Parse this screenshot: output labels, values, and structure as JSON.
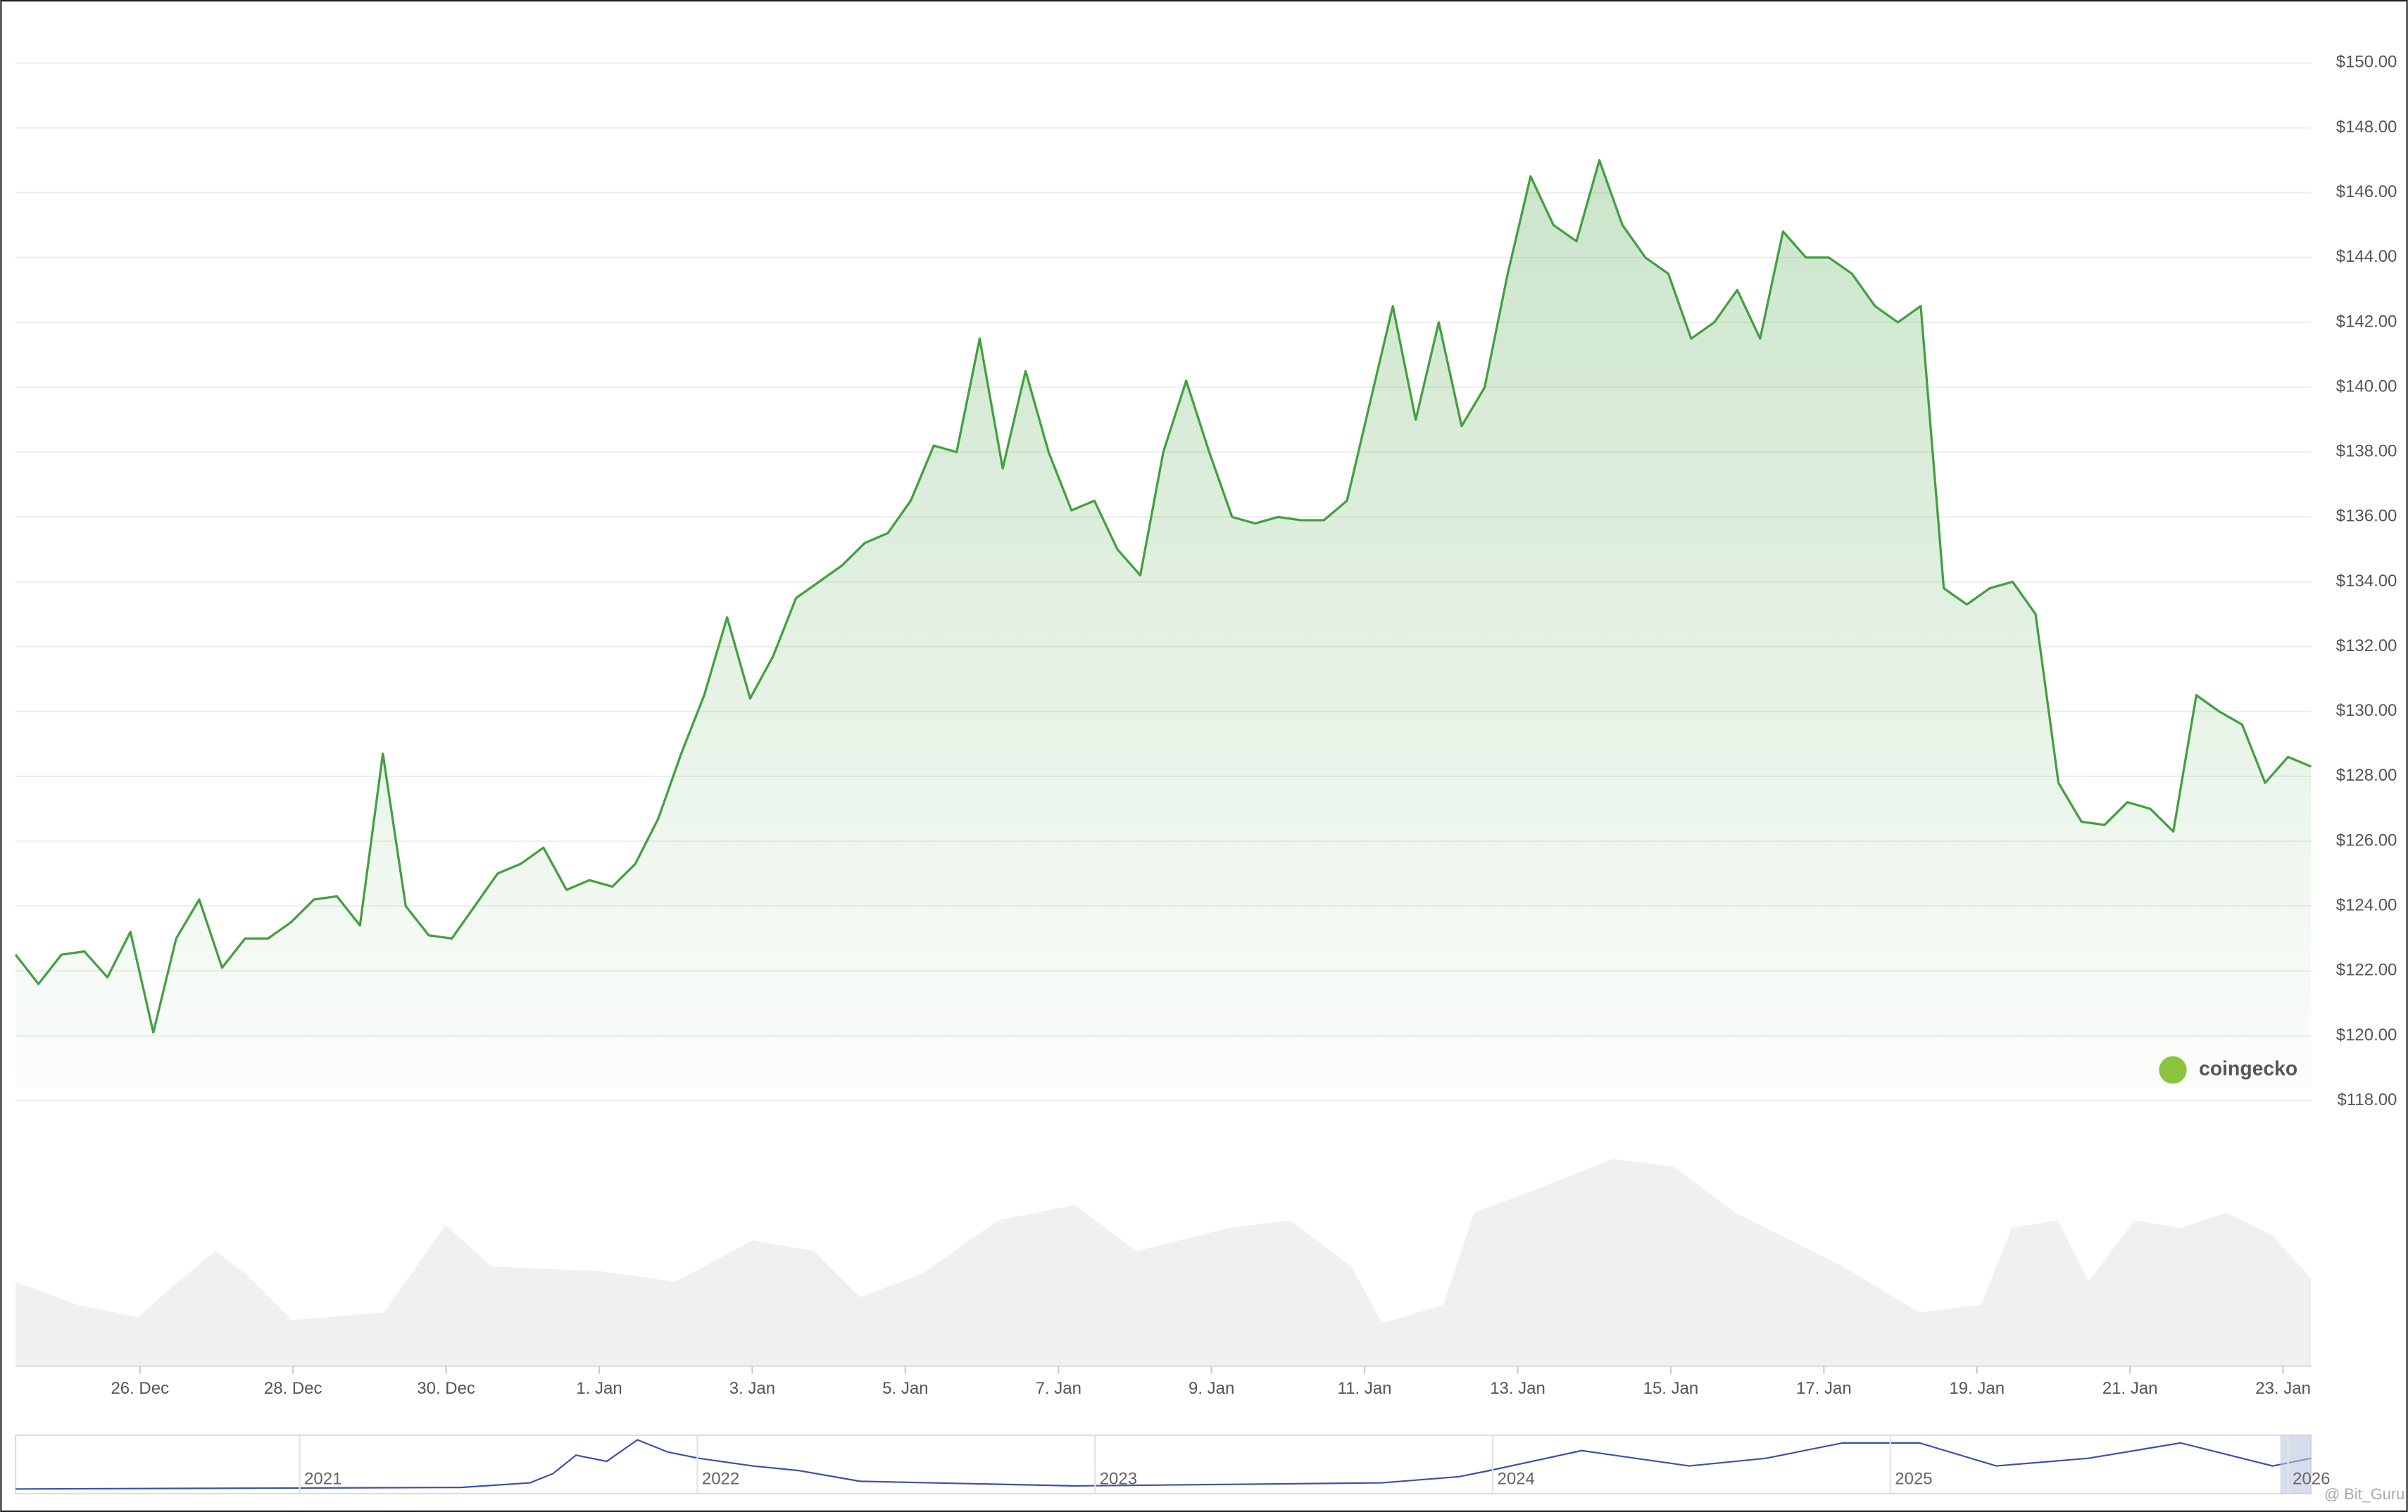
{
  "chart_data": {
    "type": "line",
    "color": "#43a040",
    "fill": true,
    "grid": true,
    "values": [
      122.5,
      121.6,
      122.5,
      122.6,
      121.8,
      123.2,
      120.1,
      123.0,
      124.2,
      122.1,
      123.0,
      123.0,
      123.5,
      124.2,
      124.3,
      123.4,
      128.7,
      124.0,
      123.1,
      123.0,
      124.0,
      125.0,
      125.3,
      125.8,
      124.5,
      124.8,
      124.6,
      125.3,
      126.7,
      128.7,
      130.5,
      132.9,
      130.4,
      131.7,
      133.5,
      134.0,
      134.5,
      135.2,
      135.5,
      136.5,
      138.2,
      138.0,
      141.5,
      137.5,
      140.5,
      138.0,
      136.2,
      136.5,
      135.0,
      134.2,
      138.0,
      140.2,
      138.0,
      136.0,
      135.8,
      136.0,
      135.9,
      135.9,
      136.5,
      139.5,
      142.5,
      139.0,
      142.0,
      138.8,
      140.0,
      143.5,
      146.5,
      145.0,
      144.5,
      147.0,
      145.0,
      144.0,
      143.5,
      141.5,
      142.0,
      143.0,
      141.5,
      144.8,
      144.0,
      144.0,
      143.5,
      142.5,
      142.0,
      142.5,
      133.8,
      133.3,
      133.8,
      134.0,
      133.0,
      127.8,
      126.6,
      126.5,
      127.2,
      127.0,
      126.3,
      130.5,
      130.0,
      129.6,
      127.8,
      128.6,
      128.3
    ],
    "ylim": [
      118,
      150
    ],
    "yticks": [
      {
        "value": 150,
        "label": "$150.00"
      },
      {
        "value": 148,
        "label": "$148.00"
      },
      {
        "value": 146,
        "label": "$146.00"
      },
      {
        "value": 144,
        "label": "$144.00"
      },
      {
        "value": 142,
        "label": "$142.00"
      },
      {
        "value": 140,
        "label": "$140.00"
      },
      {
        "value": 138,
        "label": "$138.00"
      },
      {
        "value": 136,
        "label": "$136.00"
      },
      {
        "value": 134,
        "label": "$134.00"
      },
      {
        "value": 132,
        "label": "$132.00"
      },
      {
        "value": 130,
        "label": "$130.00"
      },
      {
        "value": 128,
        "label": "$128.00"
      },
      {
        "value": 126,
        "label": "$126.00"
      },
      {
        "value": 124,
        "label": "$124.00"
      },
      {
        "value": 122,
        "label": "$122.00"
      },
      {
        "value": 120,
        "label": "$120.00"
      },
      {
        "value": 118,
        "label": "$118.00"
      }
    ],
    "xticks": [
      "26. Dec",
      "28. Dec",
      "30. Dec",
      "1. Jan",
      "3. Jan",
      "5. Jan",
      "7. Jan",
      "9. Jan",
      "11. Jan",
      "13. Jan",
      "15. Jan",
      "17. Jan",
      "19. Jan",
      "21. Jan",
      "23. Jan"
    ],
    "navigator_labels": [
      "2021",
      "2022",
      "2023",
      "2024",
      "2025",
      "2026"
    ],
    "brand": "coingecko",
    "watermark": "@ Bit_Guru"
  }
}
